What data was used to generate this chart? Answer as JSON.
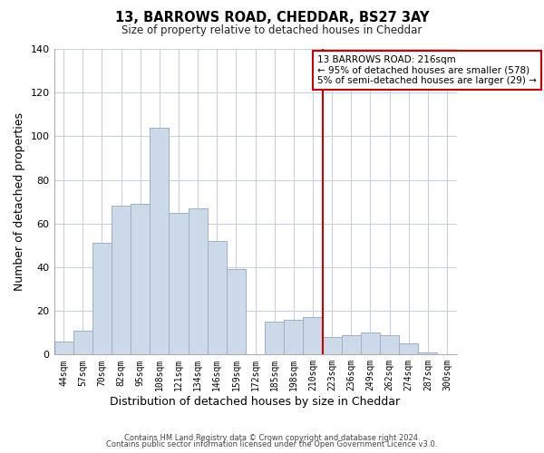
{
  "title": "13, BARROWS ROAD, CHEDDAR, BS27 3AY",
  "subtitle": "Size of property relative to detached houses in Cheddar",
  "xlabel": "Distribution of detached houses by size in Cheddar",
  "ylabel": "Number of detached properties",
  "footer_lines": [
    "Contains HM Land Registry data © Crown copyright and database right 2024.",
    "Contains public sector information licensed under the Open Government Licence v3.0."
  ],
  "bar_labels": [
    "44sqm",
    "57sqm",
    "70sqm",
    "82sqm",
    "95sqm",
    "108sqm",
    "121sqm",
    "134sqm",
    "146sqm",
    "159sqm",
    "172sqm",
    "185sqm",
    "198sqm",
    "210sqm",
    "223sqm",
    "236sqm",
    "249sqm",
    "262sqm",
    "274sqm",
    "287sqm",
    "300sqm"
  ],
  "bar_heights": [
    6,
    11,
    51,
    68,
    69,
    104,
    65,
    67,
    52,
    39,
    0,
    15,
    16,
    17,
    8,
    9,
    10,
    9,
    5,
    1,
    0
  ],
  "bar_color": "#ccd9e8",
  "bar_edge_color": "#9ab0c8",
  "ylim": [
    0,
    140
  ],
  "yticks": [
    0,
    20,
    40,
    60,
    80,
    100,
    120,
    140
  ],
  "vline_color": "#cc0000",
  "annotation_title": "13 BARROWS ROAD: 216sqm",
  "annotation_line1": "← 95% of detached houses are smaller (578)",
  "annotation_line2": "5% of semi-detached houses are larger (29) →",
  "grid_color": "#c8d0dc",
  "bg_color": "#ffffff"
}
